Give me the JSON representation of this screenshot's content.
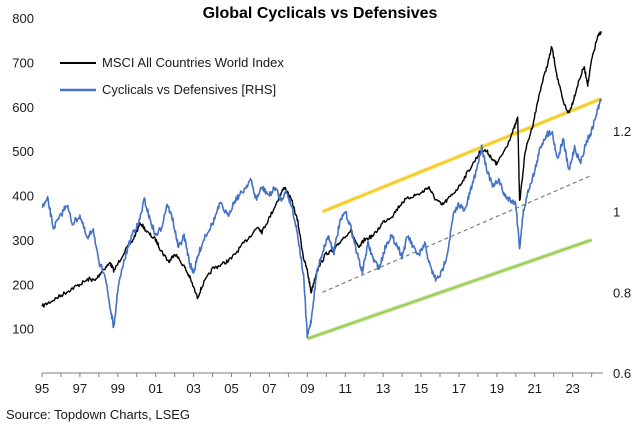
{
  "chart_data": {
    "type": "line",
    "title": "Global Cyclicals vs Defensives",
    "source": "Source: Topdown Charts, LSEG",
    "x_tick_labels": [
      "95",
      "97",
      "99",
      "01",
      "03",
      "05",
      "07",
      "09",
      "11",
      "13",
      "15",
      "17",
      "19",
      "21",
      "23"
    ],
    "x_range": [
      1995.0,
      2024.6
    ],
    "left_axis": {
      "ticks": [
        "100",
        "200",
        "300",
        "400",
        "500",
        "600",
        "700",
        "800"
      ],
      "ylim": [
        0,
        800
      ]
    },
    "right_axis": {
      "ticks": [
        "0.6",
        "0.8",
        "1",
        "1.2"
      ],
      "ylim": [
        0.6,
        1.48
      ]
    },
    "legend": {
      "placement": "top-left"
    },
    "series": [
      {
        "name": "MSCI All Countries World Index",
        "axis": "left",
        "color": "#000000",
        "x": [
          1995.0,
          1995.5,
          1996.0,
          1996.5,
          1997.0,
          1997.5,
          1997.8,
          1998.2,
          1998.6,
          1998.8,
          1999.3,
          1999.8,
          2000.2,
          2000.6,
          2001.0,
          2001.3,
          2001.7,
          2002.0,
          2002.5,
          2002.8,
          2003.2,
          2003.5,
          2004.0,
          2004.5,
          2005.0,
          2005.5,
          2006.0,
          2006.4,
          2006.6,
          2007.0,
          2007.5,
          2007.8,
          2008.2,
          2008.5,
          2008.8,
          2009.0,
          2009.2,
          2009.5,
          2010.0,
          2010.4,
          2010.8,
          2011.3,
          2011.7,
          2012.0,
          2012.5,
          2013.0,
          2013.5,
          2014.0,
          2014.5,
          2015.0,
          2015.4,
          2015.7,
          2016.1,
          2016.5,
          2017.0,
          2017.5,
          2018.0,
          2018.2,
          2018.5,
          2018.9,
          2019.0,
          2019.5,
          2019.9,
          2020.1,
          2020.2,
          2020.5,
          2020.9,
          2021.3,
          2021.7,
          2021.9,
          2022.2,
          2022.5,
          2022.8,
          2023.0,
          2023.3,
          2023.6,
          2023.8,
          2024.0,
          2024.3,
          2024.5
        ],
        "values": [
          150,
          162,
          175,
          188,
          200,
          212,
          208,
          232,
          248,
          230,
          270,
          300,
          338,
          315,
          300,
          275,
          250,
          270,
          240,
          215,
          170,
          200,
          235,
          245,
          258,
          285,
          310,
          330,
          318,
          350,
          395,
          420,
          385,
          340,
          260,
          230,
          182,
          230,
          270,
          275,
          300,
          322,
          280,
          300,
          310,
          340,
          355,
          385,
          398,
          405,
          420,
          395,
          378,
          395,
          420,
          455,
          490,
          505,
          498,
          475,
          470,
          510,
          550,
          575,
          385,
          500,
          560,
          640,
          700,
          735,
          665,
          610,
          585,
          610,
          655,
          690,
          650,
          705,
          755,
          770
        ]
      },
      {
        "name": "Cyclicals vs Defensives [RHS]",
        "axis": "right",
        "color": "#4472C4",
        "x": [
          1995.0,
          1995.3,
          1995.6,
          1996.0,
          1996.3,
          1996.6,
          1997.0,
          1997.4,
          1997.7,
          1998.0,
          1998.3,
          1998.6,
          1998.8,
          1999.0,
          1999.4,
          1999.8,
          2000.1,
          2000.4,
          2000.7,
          2001.0,
          2001.3,
          2001.6,
          2001.9,
          2002.2,
          2002.5,
          2002.8,
          2003.0,
          2003.3,
          2003.6,
          2004.0,
          2004.4,
          2004.8,
          2005.2,
          2005.6,
          2006.0,
          2006.3,
          2006.6,
          2007.0,
          2007.3,
          2007.6,
          2007.9,
          2008.2,
          2008.5,
          2008.8,
          2009.0,
          2009.2,
          2009.5,
          2009.8,
          2010.1,
          2010.4,
          2010.7,
          2011.0,
          2011.3,
          2011.6,
          2011.9,
          2012.2,
          2012.5,
          2012.8,
          2013.1,
          2013.4,
          2013.7,
          2014.0,
          2014.3,
          2014.6,
          2014.9,
          2015.2,
          2015.5,
          2015.8,
          2016.1,
          2016.4,
          2016.7,
          2017.0,
          2017.3,
          2017.6,
          2017.9,
          2018.2,
          2018.5,
          2018.8,
          2019.1,
          2019.4,
          2019.7,
          2020.0,
          2020.2,
          2020.4,
          2020.7,
          2021.0,
          2021.3,
          2021.6,
          2021.9,
          2022.2,
          2022.5,
          2022.8,
          2023.1,
          2023.4,
          2023.7,
          2024.0,
          2024.3,
          2024.5
        ],
        "values": [
          1.01,
          1.03,
          0.96,
          0.99,
          1.02,
          0.97,
          0.99,
          0.93,
          0.96,
          0.87,
          0.85,
          0.76,
          0.71,
          0.81,
          0.89,
          0.95,
          0.97,
          1.03,
          0.98,
          0.94,
          0.96,
          1.02,
          0.98,
          0.91,
          0.94,
          0.87,
          0.85,
          0.9,
          0.94,
          0.97,
          1.02,
          0.99,
          1.03,
          1.05,
          1.08,
          1.03,
          1.06,
          1.04,
          1.06,
          1.03,
          1.05,
          1.01,
          0.94,
          0.84,
          0.69,
          0.73,
          0.85,
          0.9,
          0.94,
          0.9,
          0.97,
          1.0,
          0.96,
          0.9,
          0.85,
          0.92,
          0.88,
          0.86,
          0.91,
          0.94,
          0.92,
          0.89,
          0.94,
          0.91,
          0.89,
          0.92,
          0.86,
          0.83,
          0.85,
          0.9,
          0.99,
          1.02,
          1.0,
          1.05,
          1.1,
          1.16,
          1.1,
          1.06,
          1.08,
          1.04,
          1.03,
          1.02,
          0.91,
          1.0,
          1.06,
          1.1,
          1.16,
          1.19,
          1.2,
          1.13,
          1.18,
          1.1,
          1.16,
          1.12,
          1.17,
          1.2,
          1.25,
          1.28
        ]
      }
    ],
    "channel_lines": [
      {
        "name": "upper-channel",
        "axis": "right",
        "color": "#F2C400",
        "x": [
          2009.8,
          2024.5
        ],
        "y": [
          1.0,
          1.28
        ]
      },
      {
        "name": "mid-trend",
        "axis": "right",
        "color": "#7F7F7F",
        "style": "dashed",
        "x": [
          2009.8,
          2024.0
        ],
        "y": [
          0.8,
          1.09
        ]
      },
      {
        "name": "lower-channel",
        "axis": "right",
        "color": "#8DC63F",
        "x": [
          2009.0,
          2024.0
        ],
        "y": [
          0.685,
          0.93
        ]
      }
    ]
  }
}
